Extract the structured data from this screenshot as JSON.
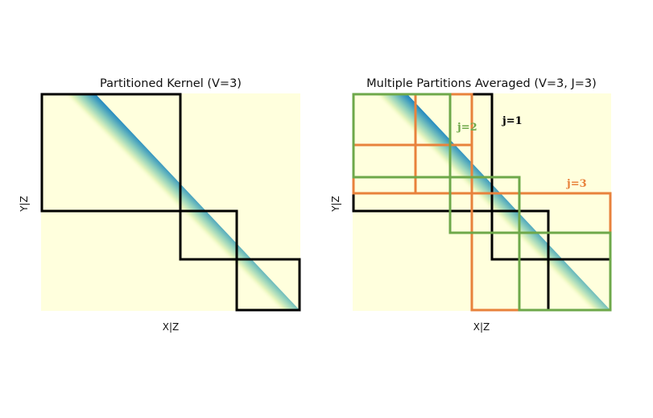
{
  "left_panel": {
    "title": "Partitioned Kernel (V=3)",
    "xlabel": "X|Z",
    "ylabel": "Y|Z"
  },
  "right_panel": {
    "title": "Multiple Partitions Averaged (V=3, J=3)",
    "xlabel": "X|Z",
    "ylabel": "Y|Z",
    "partition_labels": [
      {
        "text": "j=1",
        "color": "#000000"
      },
      {
        "text": "j=2",
        "color": "#6ea84a"
      },
      {
        "text": "j=3",
        "color": "#e8823c"
      }
    ]
  },
  "colors": {
    "background": "#ffffdd",
    "kernel_core": "#22307a",
    "kernel_mid": "#2b8fc0",
    "kernel_edge": "#c9e9b6",
    "partition_j1": "#000000",
    "partition_j2": "#6ea84a",
    "partition_j3": "#e8823c"
  }
}
